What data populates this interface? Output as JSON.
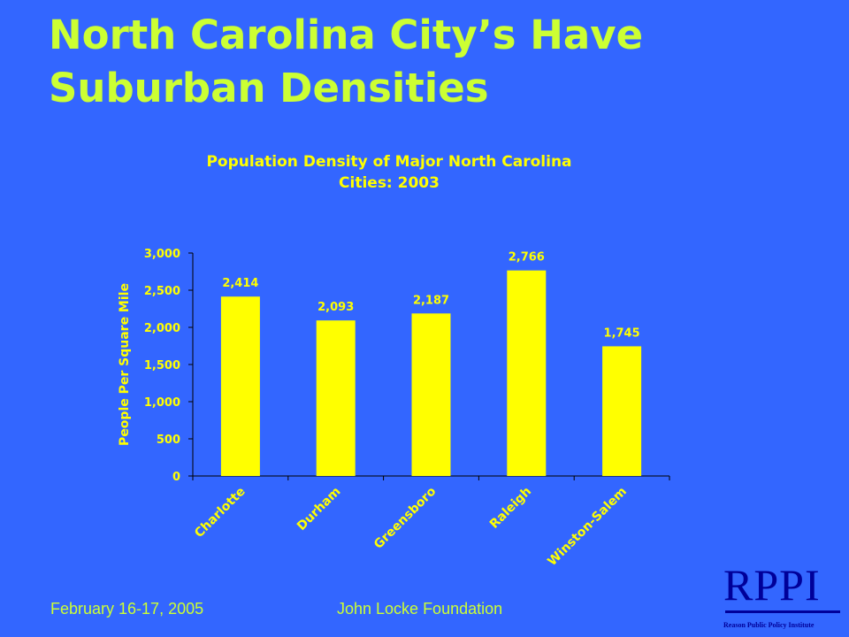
{
  "slide": {
    "title_line1": "North Carolina City’s Have",
    "title_line2": "Suburban Densities"
  },
  "chart_data": {
    "type": "bar",
    "title_lines": [
      "Population Density of Major North Carolina",
      "Cities: 2003"
    ],
    "ylabel": "People Per Square Mile",
    "xlabel": "",
    "categories": [
      "Charlotte",
      "Durham",
      "Greensboro",
      "Raleigh",
      "Winston-Salem"
    ],
    "values": [
      2414,
      2093,
      2187,
      2766,
      1745
    ],
    "value_labels": [
      "2,414",
      "2,093",
      "2,187",
      "2,766",
      "1,745"
    ],
    "ylim": [
      0,
      3000
    ],
    "yticks": [
      0,
      500,
      1000,
      1500,
      2000,
      2500,
      3000
    ],
    "ytick_labels": [
      "0",
      "500",
      "1,000",
      "1,500",
      "2,000",
      "2,500",
      "3,000"
    ],
    "grid": false,
    "bar_color": "#ffff00",
    "text_color": "#ffff00",
    "axis_color": "#000000"
  },
  "footer": {
    "date": "February 16-17, 2005",
    "event": "John Locke Foundation"
  },
  "logo": {
    "text": "RPPI",
    "subtitle": "Reason Public Policy Institute",
    "color": "#000099"
  }
}
